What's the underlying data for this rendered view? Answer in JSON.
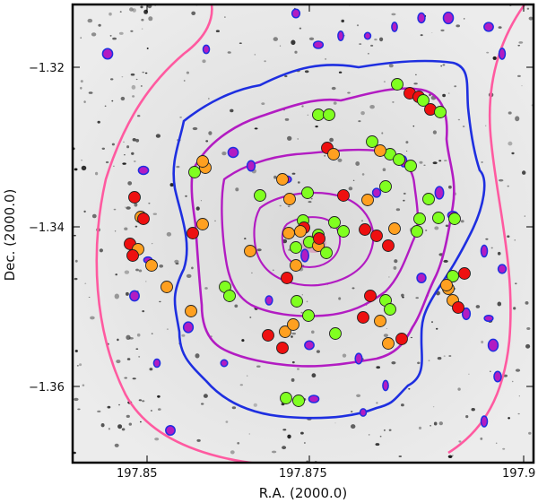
{
  "axes": {
    "xlabel": "R.A. (2000.0)",
    "ylabel": "Dec. (2000.0)",
    "x_ticks": [
      "197.85",
      "197.875",
      "197.9"
    ],
    "y_ticks": [
      "−1.32",
      "−1.34",
      "−1.36"
    ]
  },
  "colors": {
    "frame": "#000000",
    "contour_outer": "#ff5aa0",
    "contour_mid": "#1e2fe0",
    "contour_inner": "#b21cc2",
    "galaxy_green": "#80ff20",
    "galaxy_orange": "#ffa020",
    "galaxy_red": "#ee1010",
    "background": "#e6e6e6"
  },
  "marker_legend": [
    "galaxy_green",
    "galaxy_orange",
    "galaxy_red"
  ]
}
